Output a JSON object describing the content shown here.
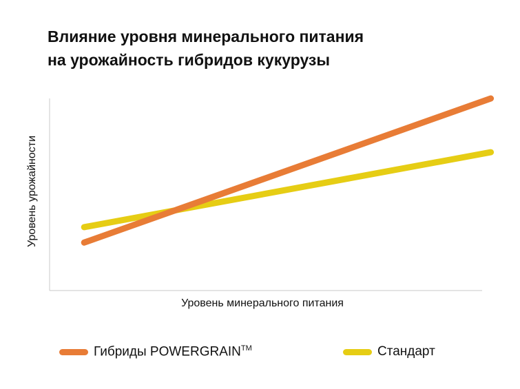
{
  "chart_data": {
    "type": "line",
    "title_lines": [
      "Влияние уровня минерального питания",
      "на урожайность гибридов кукурузы"
    ],
    "xlabel": "Уровень минерального питания",
    "ylabel": "Уровень урожайности",
    "xlim": [
      0,
      10
    ],
    "ylim": [
      0,
      10
    ],
    "grid": false,
    "legend_position": "bottom",
    "series": [
      {
        "name": "Гибриды POWERGRAIN",
        "name_mark": "TM",
        "color": "#E87C36",
        "x": [
          0.8,
          10.2
        ],
        "y": [
          2.5,
          10.0
        ]
      },
      {
        "name": "Стандарт",
        "color": "#E6CD14",
        "x": [
          0.8,
          10.2
        ],
        "y": [
          3.3,
          7.2
        ]
      }
    ]
  }
}
